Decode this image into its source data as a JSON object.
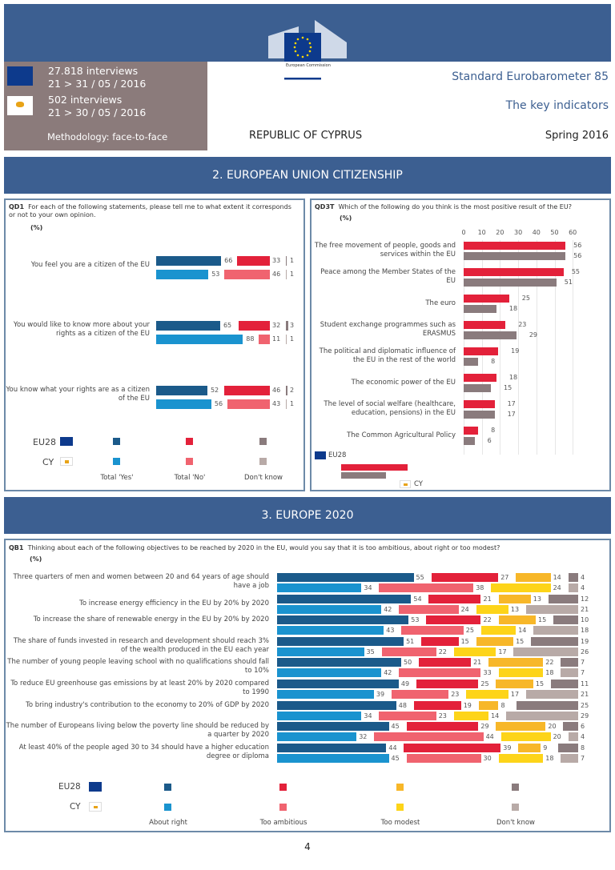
{
  "header": {
    "logo_text": "European Commission",
    "eu_interviews": "27.818 interviews",
    "eu_dates": "21 > 31 / 05 / 2016",
    "cy_interviews": "502 interviews",
    "cy_dates": "21 > 30 / 05 / 2016",
    "methodology": "Methodology: face-to-face",
    "survey": "Standard Eurobarometer 85",
    "subtitle": "The key indicators",
    "country": "REPUBLIC OF CYPRUS",
    "season": "Spring 2016"
  },
  "sections": {
    "citizenship": "2. EUROPEAN UNION CITIZENSHIP",
    "europe2020": "3. EUROPE 2020"
  },
  "colors": {
    "header_blue": "#3c5f91",
    "eu_yes": "#1b5a8a",
    "cy_yes": "#1a93cf",
    "eu_no": "#e3213a",
    "cy_no": "#f0636f",
    "eu_modest": "#f7b729",
    "cy_modest": "#fdd419",
    "eu_dk": "#8a7b7d",
    "cy_dk": "#b8aaa7"
  },
  "chart_data": [
    {
      "id": "QD1",
      "type": "bar",
      "code": "QD1",
      "question": "For each of the following statements, please tell me to what extent it corresponds or not to your own opinion.",
      "unit": "(%)",
      "categories": [
        "You feel you are a citizen of the EU",
        "You would like to know more about your rights as a citizen of the EU",
        "You know what your rights are as a citizen of the EU"
      ],
      "series": [
        {
          "name": "EU28 Total 'Yes'",
          "values": [
            66,
            65,
            52
          ]
        },
        {
          "name": "EU28 Total 'No'",
          "values": [
            33,
            32,
            46
          ]
        },
        {
          "name": "EU28 Don't know",
          "values": [
            1,
            3,
            2
          ]
        },
        {
          "name": "CY Total 'Yes'",
          "values": [
            53,
            88,
            56
          ]
        },
        {
          "name": "CY Total 'No'",
          "values": [
            46,
            11,
            43
          ]
        },
        {
          "name": "CY Don't know",
          "values": [
            1,
            1,
            1
          ]
        }
      ],
      "legend": {
        "groups": [
          "EU28",
          "CY"
        ],
        "labels": [
          "Total 'Yes'",
          "Total 'No'",
          "Don't know"
        ]
      }
    },
    {
      "id": "QD3T",
      "type": "bar",
      "code": "QD3T",
      "question": "Which of the following do you think is the most positive result of the EU?",
      "unit": "(%)",
      "xlim": [
        0,
        60
      ],
      "ticks": [
        "0",
        "10",
        "20",
        "30",
        "40",
        "50",
        "60"
      ],
      "grid": true,
      "categories": [
        "The free movement of people, goods and services within the EU",
        "Peace among the Member States of the EU",
        "The euro",
        "Student exchange programmes such as ERASMUS",
        "The political and diplomatic influence of the EU in the rest of the world",
        "The economic power of the EU",
        "The level of social welfare (healthcare, education, pensions) in the EU",
        "The Common Agricultural Policy"
      ],
      "series": [
        {
          "name": "EU28",
          "values": [
            56,
            55,
            25,
            23,
            19,
            18,
            17,
            8
          ]
        },
        {
          "name": "CY",
          "values": [
            56,
            51,
            18,
            29,
            8,
            15,
            17,
            6
          ]
        }
      ],
      "legend": {
        "eu": "EU28",
        "cy": "CY",
        "placement": "bottom-left"
      }
    },
    {
      "id": "QB1",
      "type": "bar",
      "stacked": true,
      "code": "QB1",
      "question": "Thinking about each of the following objectives to be reached by 2020 in the EU, would you say that it is too ambitious, about right or too modest?",
      "unit": "(%)",
      "categories": [
        "Three quarters of men and women between 20 and 64 years of age should have a job",
        "To increase energy efficiency in the EU by 20% by 2020",
        "To increase the share of renewable energy in the EU by 20% by 2020",
        "The share of funds invested in research and development should reach 3% of the wealth produced in the EU each year",
        "The number of young people leaving school with no qualifications should fall to 10%",
        "To reduce EU greenhouse gas emissions by at least 20% by 2020 compared to 1990",
        "To bring industry's contribution to the economy to 20% of GDP by 2020",
        "The number of Europeans living below the poverty line should be reduced by a quarter by 2020",
        "At least 40% of the people aged 30 to 34 should have a higher education degree or diploma"
      ],
      "eu28": [
        [
          55,
          27,
          14,
          4
        ],
        [
          54,
          21,
          13,
          12
        ],
        [
          53,
          22,
          15,
          10
        ],
        [
          51,
          15,
          15,
          19
        ],
        [
          50,
          21,
          22,
          7
        ],
        [
          49,
          25,
          15,
          11
        ],
        [
          48,
          19,
          8,
          25
        ],
        [
          45,
          29,
          20,
          6
        ],
        [
          44,
          39,
          9,
          8
        ]
      ],
      "cy": [
        [
          34,
          38,
          24,
          4
        ],
        [
          42,
          24,
          13,
          21
        ],
        [
          43,
          25,
          14,
          18
        ],
        [
          35,
          22,
          17,
          26
        ],
        [
          42,
          33,
          18,
          7
        ],
        [
          39,
          23,
          17,
          21
        ],
        [
          34,
          23,
          14,
          29
        ],
        [
          32,
          44,
          20,
          4
        ],
        [
          45,
          30,
          18,
          7
        ]
      ],
      "legend": {
        "groups": [
          "EU28",
          "CY"
        ],
        "labels": [
          "About right",
          "Too ambitious",
          "Too modest",
          "Don't know"
        ]
      }
    }
  ],
  "footer": {
    "page_number": "4"
  }
}
